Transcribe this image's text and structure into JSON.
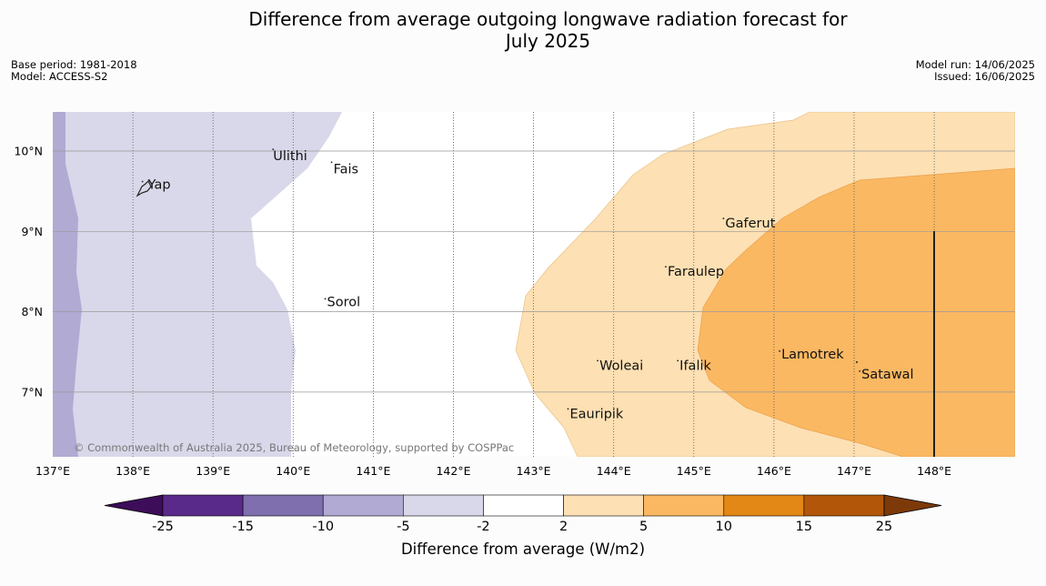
{
  "title": {
    "line1": "Difference from average outgoing longwave radiation forecast for",
    "line2": "July 2025"
  },
  "meta_left": {
    "base_period": "Base period: 1981-2018",
    "model": "Model: ACCESS-S2"
  },
  "meta_right": {
    "model_run": "Model run: 14/06/2025",
    "issued": "Issued: 16/06/2025"
  },
  "map": {
    "copyright": "© Commonwealth of Australia 2025, Bureau of Meteorology, supported by COSPPac",
    "lon_labels": [
      "137°E",
      "138°E",
      "139°E",
      "140°E",
      "141°E",
      "142°E",
      "143°E",
      "144°E",
      "145°E",
      "146°E",
      "147°E",
      "148°E"
    ],
    "lat_labels": [
      "10°N",
      "9°N",
      "8°N",
      "7°N"
    ],
    "places": [
      {
        "name": "Ulithi",
        "lon": 139.75,
        "lat": 9.93
      },
      {
        "name": "Fais",
        "lon": 140.48,
        "lat": 9.77
      },
      {
        "name": "Yap",
        "lon": 138.12,
        "lat": 9.53
      },
      {
        "name": "Gaferut",
        "lon": 145.37,
        "lat": 9.07
      },
      {
        "name": "Faraulep",
        "lon": 144.65,
        "lat": 8.47
      },
      {
        "name": "Sorol",
        "lon": 140.4,
        "lat": 8.07
      },
      {
        "name": "Lamotrek",
        "lon": 146.07,
        "lat": 7.42
      },
      {
        "name": "Woleai",
        "lon": 143.8,
        "lat": 7.3
      },
      {
        "name": "Ifalik",
        "lon": 144.8,
        "lat": 7.3
      },
      {
        "name": "Satawal",
        "lon": 147.07,
        "lat": 7.17
      },
      {
        "name": "Eauripik",
        "lon": 143.43,
        "lat": 6.7
      }
    ]
  },
  "colorbar": {
    "title": "Difference from average (W/m2)",
    "ticks": [
      "-25",
      "-15",
      "-10",
      "-5",
      "-2",
      "2",
      "5",
      "10",
      "15",
      "25"
    ],
    "colors": [
      "#3d0d5a",
      "#5a2a8a",
      "#7f6fae",
      "#b1aad3",
      "#d8d8ea",
      "#ffffff",
      "#fde0b3",
      "#fbb862",
      "#e38716",
      "#b2570a",
      "#7d3a08"
    ]
  }
}
